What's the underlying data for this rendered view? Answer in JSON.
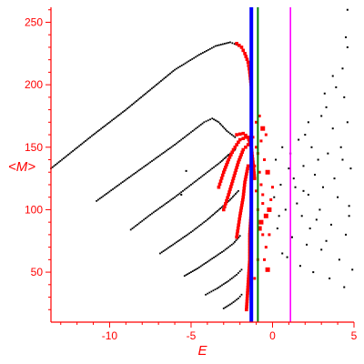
{
  "chart_data": {
    "type": "scatter",
    "title": "",
    "xlabel": "E",
    "ylabel": "<M>",
    "xlim": [
      -13.6,
      5.0
    ],
    "ylim": [
      10,
      262
    ],
    "x_ticks": [
      -10,
      -5,
      0,
      5
    ],
    "x_tick_labels": [
      "-10",
      "-5",
      "0",
      "5"
    ],
    "y_ticks": [
      50,
      100,
      150,
      200,
      250
    ],
    "y_tick_labels": [
      "50",
      "100",
      "150",
      "200",
      "250"
    ],
    "grid": false,
    "legend": "none",
    "axis_color": "#ff0000",
    "vertical_lines": [
      {
        "x": -1.3,
        "color": "#0000ff"
      },
      {
        "x": -0.9,
        "color": "#008000"
      },
      {
        "x": 1.1,
        "color": "#ff00ff"
      }
    ],
    "series": [
      {
        "color": "#000000",
        "style": "dotted-curves",
        "curves": [
          [
            [
              -13.6,
              133
            ],
            [
              -11.0,
              160
            ],
            [
              -9.0,
              180
            ],
            [
              -7.5,
              196
            ],
            [
              -6.0,
              212
            ],
            [
              -4.5,
              224
            ],
            [
              -3.5,
              231
            ],
            [
              -2.6,
              234
            ],
            [
              -2.2,
              232
            ]
          ],
          [
            [
              -10.8,
              107
            ],
            [
              -9.0,
              124
            ],
            [
              -7.5,
              138
            ],
            [
              -6.0,
              152
            ],
            [
              -5.0,
              162
            ],
            [
              -4.2,
              170
            ],
            [
              -3.7,
              173
            ],
            [
              -3.3,
              170
            ],
            [
              -2.8,
              163
            ],
            [
              -2.3,
              158
            ]
          ],
          [
            [
              -8.7,
              84
            ],
            [
              -7.5,
              96
            ],
            [
              -6.0,
              110
            ],
            [
              -5.0,
              120
            ],
            [
              -4.0,
              130
            ],
            [
              -3.2,
              138
            ],
            [
              -2.7,
              144
            ],
            [
              -2.3,
              148
            ]
          ],
          [
            [
              -6.9,
              65
            ],
            [
              -6.0,
              73
            ],
            [
              -5.0,
              82
            ],
            [
              -4.0,
              92
            ],
            [
              -3.2,
              101
            ],
            [
              -2.6,
              108
            ],
            [
              -2.1,
              115
            ]
          ],
          [
            [
              -5.4,
              47
            ],
            [
              -4.6,
              53
            ],
            [
              -3.8,
              60
            ],
            [
              -3.0,
              67
            ],
            [
              -2.4,
              73
            ],
            [
              -2.0,
              79
            ]
          ],
          [
            [
              -4.1,
              32
            ],
            [
              -3.4,
              37
            ],
            [
              -2.7,
              43
            ],
            [
              -2.2,
              48
            ],
            [
              -1.9,
              52
            ]
          ],
          [
            [
              -3.0,
              21
            ],
            [
              -2.5,
              25
            ],
            [
              -2.1,
              29
            ],
            [
              -1.9,
              32
            ]
          ]
        ]
      },
      {
        "color": "#ff0000",
        "style": "red-markers",
        "curves": [
          [
            [
              -2.2,
              233
            ],
            [
              -1.9,
              230
            ],
            [
              -1.7,
              225
            ],
            [
              -1.5,
              218
            ],
            [
              -1.4,
              210
            ],
            [
              -1.3,
              198
            ]
          ],
          [
            [
              -2.2,
              160
            ],
            [
              -1.8,
              161
            ],
            [
              -1.5,
              158
            ],
            [
              -1.3,
              150
            ],
            [
              -1.2,
              138
            ],
            [
              -1.1,
              125
            ]
          ],
          [
            [
              -3.3,
              118
            ],
            [
              -3.0,
              130
            ],
            [
              -2.7,
              140
            ],
            [
              -2.4,
              148
            ],
            [
              -2.0,
              156
            ],
            [
              -1.6,
              158
            ],
            [
              -1.3,
              155
            ]
          ],
          [
            [
              -3.0,
              100
            ],
            [
              -2.7,
              112
            ],
            [
              -2.4,
              125
            ],
            [
              -2.1,
              138
            ],
            [
              -1.8,
              148
            ],
            [
              -1.5,
              152
            ]
          ],
          [
            [
              -2.2,
              78
            ],
            [
              -2.0,
              95
            ],
            [
              -1.8,
              110
            ],
            [
              -1.7,
              122
            ],
            [
              -1.5,
              135
            ]
          ],
          [
            [
              -1.6,
              20
            ],
            [
              -1.5,
              40
            ],
            [
              -1.4,
              60
            ],
            [
              -1.4,
              80
            ],
            [
              -1.3,
              100
            ],
            [
              -1.3,
              120
            ],
            [
              -1.3,
              140
            ]
          ]
        ],
        "scatter": [
          [
            -1.2,
            158
          ],
          [
            -1.0,
            150
          ],
          [
            -0.9,
            145
          ],
          [
            -0.8,
            130
          ],
          [
            -0.7,
            120
          ],
          [
            -0.6,
            112
          ],
          [
            -0.9,
            100
          ],
          [
            -0.7,
            90
          ],
          [
            -0.6,
            80
          ],
          [
            -0.4,
            70
          ],
          [
            -0.5,
            60
          ],
          [
            -0.3,
            52
          ],
          [
            -0.2,
            100
          ],
          [
            -0.1,
            108
          ],
          [
            0.0,
            118
          ],
          [
            -0.8,
            175
          ],
          [
            -0.6,
            165
          ],
          [
            -1.0,
            170
          ],
          [
            -0.9,
            60
          ],
          [
            -1.1,
            45
          ],
          [
            -1.0,
            115
          ],
          [
            -0.5,
            140
          ],
          [
            -0.3,
            130
          ],
          [
            -0.4,
            95
          ],
          [
            -0.2,
            80
          ],
          [
            -0.6,
            105
          ],
          [
            -0.8,
            85
          ],
          [
            -1.1,
            135
          ],
          [
            -0.7,
            155
          ],
          [
            -0.4,
            160
          ]
        ]
      },
      {
        "color": "#000000",
        "style": "small-dots",
        "scatter": [
          [
            4.6,
            260
          ],
          [
            4.5,
            238
          ],
          [
            4.6,
            230
          ],
          [
            3.7,
            207
          ],
          [
            4.3,
            213
          ],
          [
            3.3,
            182
          ],
          [
            4.4,
            190
          ],
          [
            3.9,
            198
          ],
          [
            3.2,
            193
          ],
          [
            3.0,
            175
          ],
          [
            2.2,
            170
          ],
          [
            1.6,
            156
          ],
          [
            2.4,
            150
          ],
          [
            0.6,
            150
          ],
          [
            0.2,
            140
          ],
          [
            1.0,
            133
          ],
          [
            1.9,
            135
          ],
          [
            2.6,
            128
          ],
          [
            3.4,
            145
          ],
          [
            4.3,
            140
          ],
          [
            4.8,
            133
          ],
          [
            0.5,
            120
          ],
          [
            1.4,
            118
          ],
          [
            2.2,
            112
          ],
          [
            3.1,
            118
          ],
          [
            4.0,
            110
          ],
          [
            4.7,
            103
          ],
          [
            0.8,
            100
          ],
          [
            1.8,
            95
          ],
          [
            2.7,
            92
          ],
          [
            3.6,
            88
          ],
          [
            4.5,
            80
          ],
          [
            0.3,
            85
          ],
          [
            1.2,
            78
          ],
          [
            2.1,
            72
          ],
          [
            3.0,
            68
          ],
          [
            4.1,
            60
          ],
          [
            4.9,
            52
          ],
          [
            0.9,
            62
          ],
          [
            1.7,
            55
          ],
          [
            2.5,
            50
          ],
          [
            3.5,
            45
          ],
          [
            4.4,
            38
          ],
          [
            1.5,
            105
          ],
          [
            2.9,
            100
          ],
          [
            3.8,
            125
          ],
          [
            0.1,
            110
          ],
          [
            1.1,
            145
          ],
          [
            2.0,
            160
          ],
          [
            3.7,
            165
          ],
          [
            4.6,
            170
          ],
          [
            4.2,
            150
          ],
          [
            2.8,
            140
          ],
          [
            1.3,
            125
          ],
          [
            0.4,
            95
          ],
          [
            0.6,
            65
          ],
          [
            2.3,
            85
          ],
          [
            3.3,
            75
          ],
          [
            4.7,
            95
          ],
          [
            1.9,
            115
          ]
        ]
      },
      {
        "color": "#000000",
        "style": "isolated-dots",
        "scatter": [
          [
            -5.3,
            131
          ],
          [
            -5.6,
            112
          ]
        ]
      }
    ]
  }
}
